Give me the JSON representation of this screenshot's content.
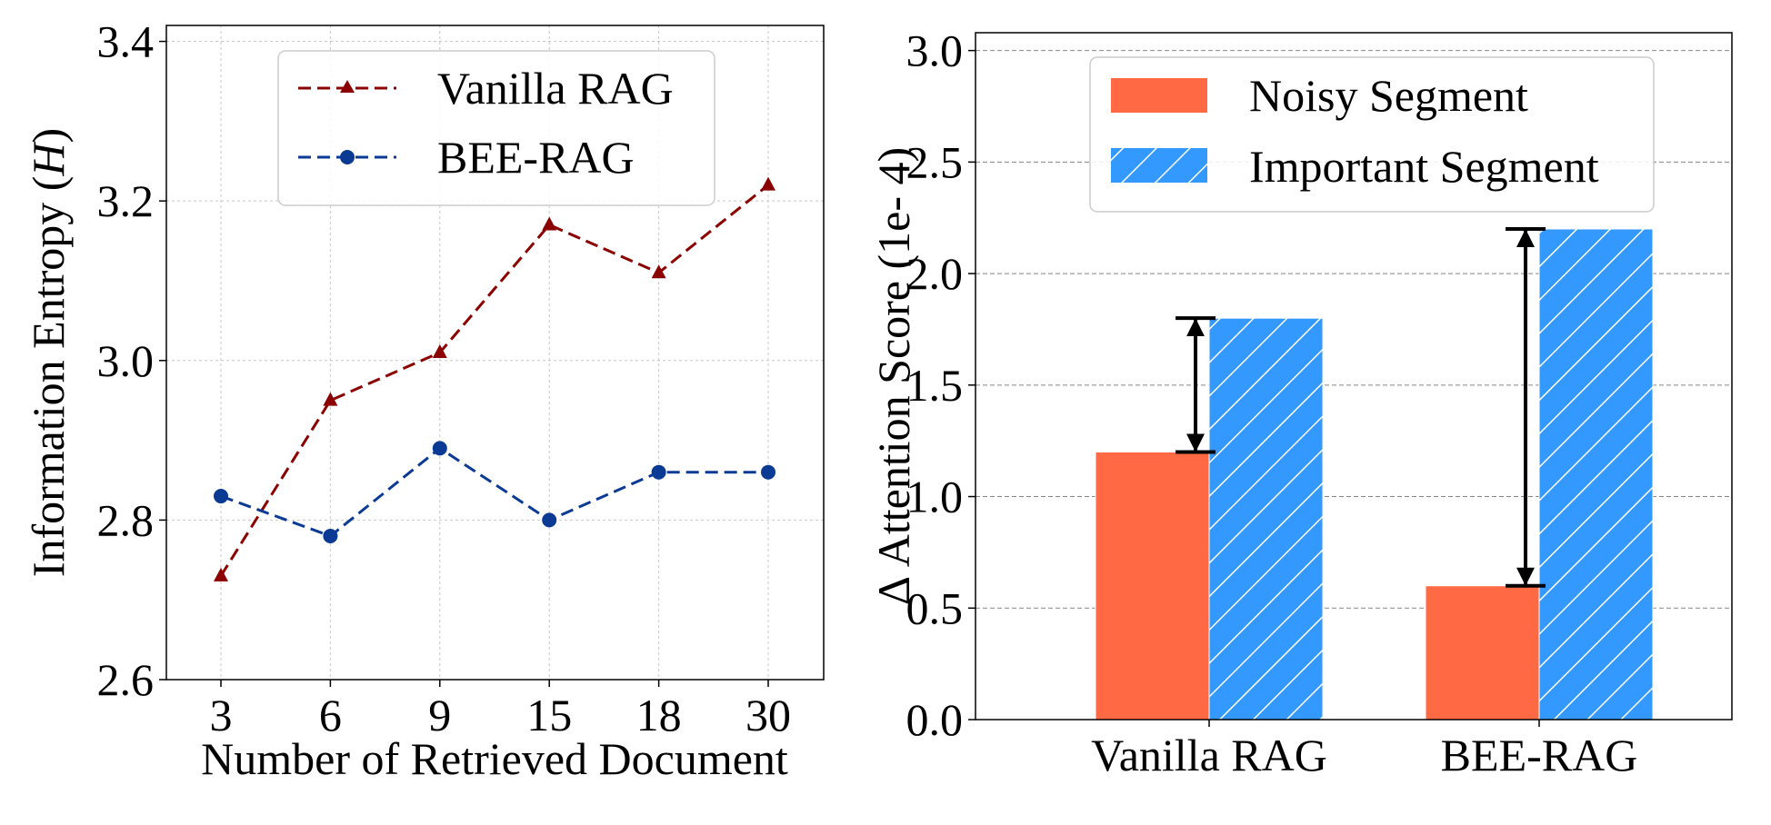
{
  "chart_data": [
    {
      "type": "line",
      "title": "",
      "xlabel": "Number of Retrieved Document",
      "ylabel_main": "Information Entropy (",
      "ylabel_symbol": "H",
      "ylabel_close": ")",
      "categories": [
        "3",
        "6",
        "9",
        "15",
        "18",
        "30"
      ],
      "ylim": [
        2.6,
        3.42
      ],
      "yticks": [
        "2.6",
        "2.8",
        "3.0",
        "3.2",
        "3.4"
      ],
      "grid": true,
      "legend_position": "top-center",
      "series": [
        {
          "name": "Vanilla RAG",
          "color": "#8b0000",
          "marker": "triangle",
          "values": [
            2.73,
            2.95,
            3.01,
            3.17,
            3.11,
            3.22
          ]
        },
        {
          "name": "BEE-RAG",
          "color": "#0a3a94",
          "marker": "circle",
          "values": [
            2.83,
            2.78,
            2.89,
            2.8,
            2.86,
            2.86
          ]
        }
      ]
    },
    {
      "type": "bar",
      "title": "",
      "xlabel": "",
      "ylabel": "Δ Attention Score (1e- 4)",
      "categories": [
        "Vanilla RAG",
        "BEE-RAG"
      ],
      "ylim": [
        0.0,
        3.08
      ],
      "yticks": [
        "0.0",
        "0.5",
        "1.0",
        "1.5",
        "2.0",
        "2.5",
        "3.0"
      ],
      "grid": true,
      "legend_position": "top-center",
      "series": [
        {
          "name": "Noisy Segment",
          "color": "#ff6a45",
          "hatch": false,
          "values": [
            1.2,
            0.6
          ]
        },
        {
          "name": "Important Segment",
          "color": "#3399ff",
          "hatch": true,
          "values": [
            1.8,
            2.2
          ]
        }
      ],
      "annotations": [
        "gap arrow between Noisy and Important bars"
      ]
    }
  ]
}
